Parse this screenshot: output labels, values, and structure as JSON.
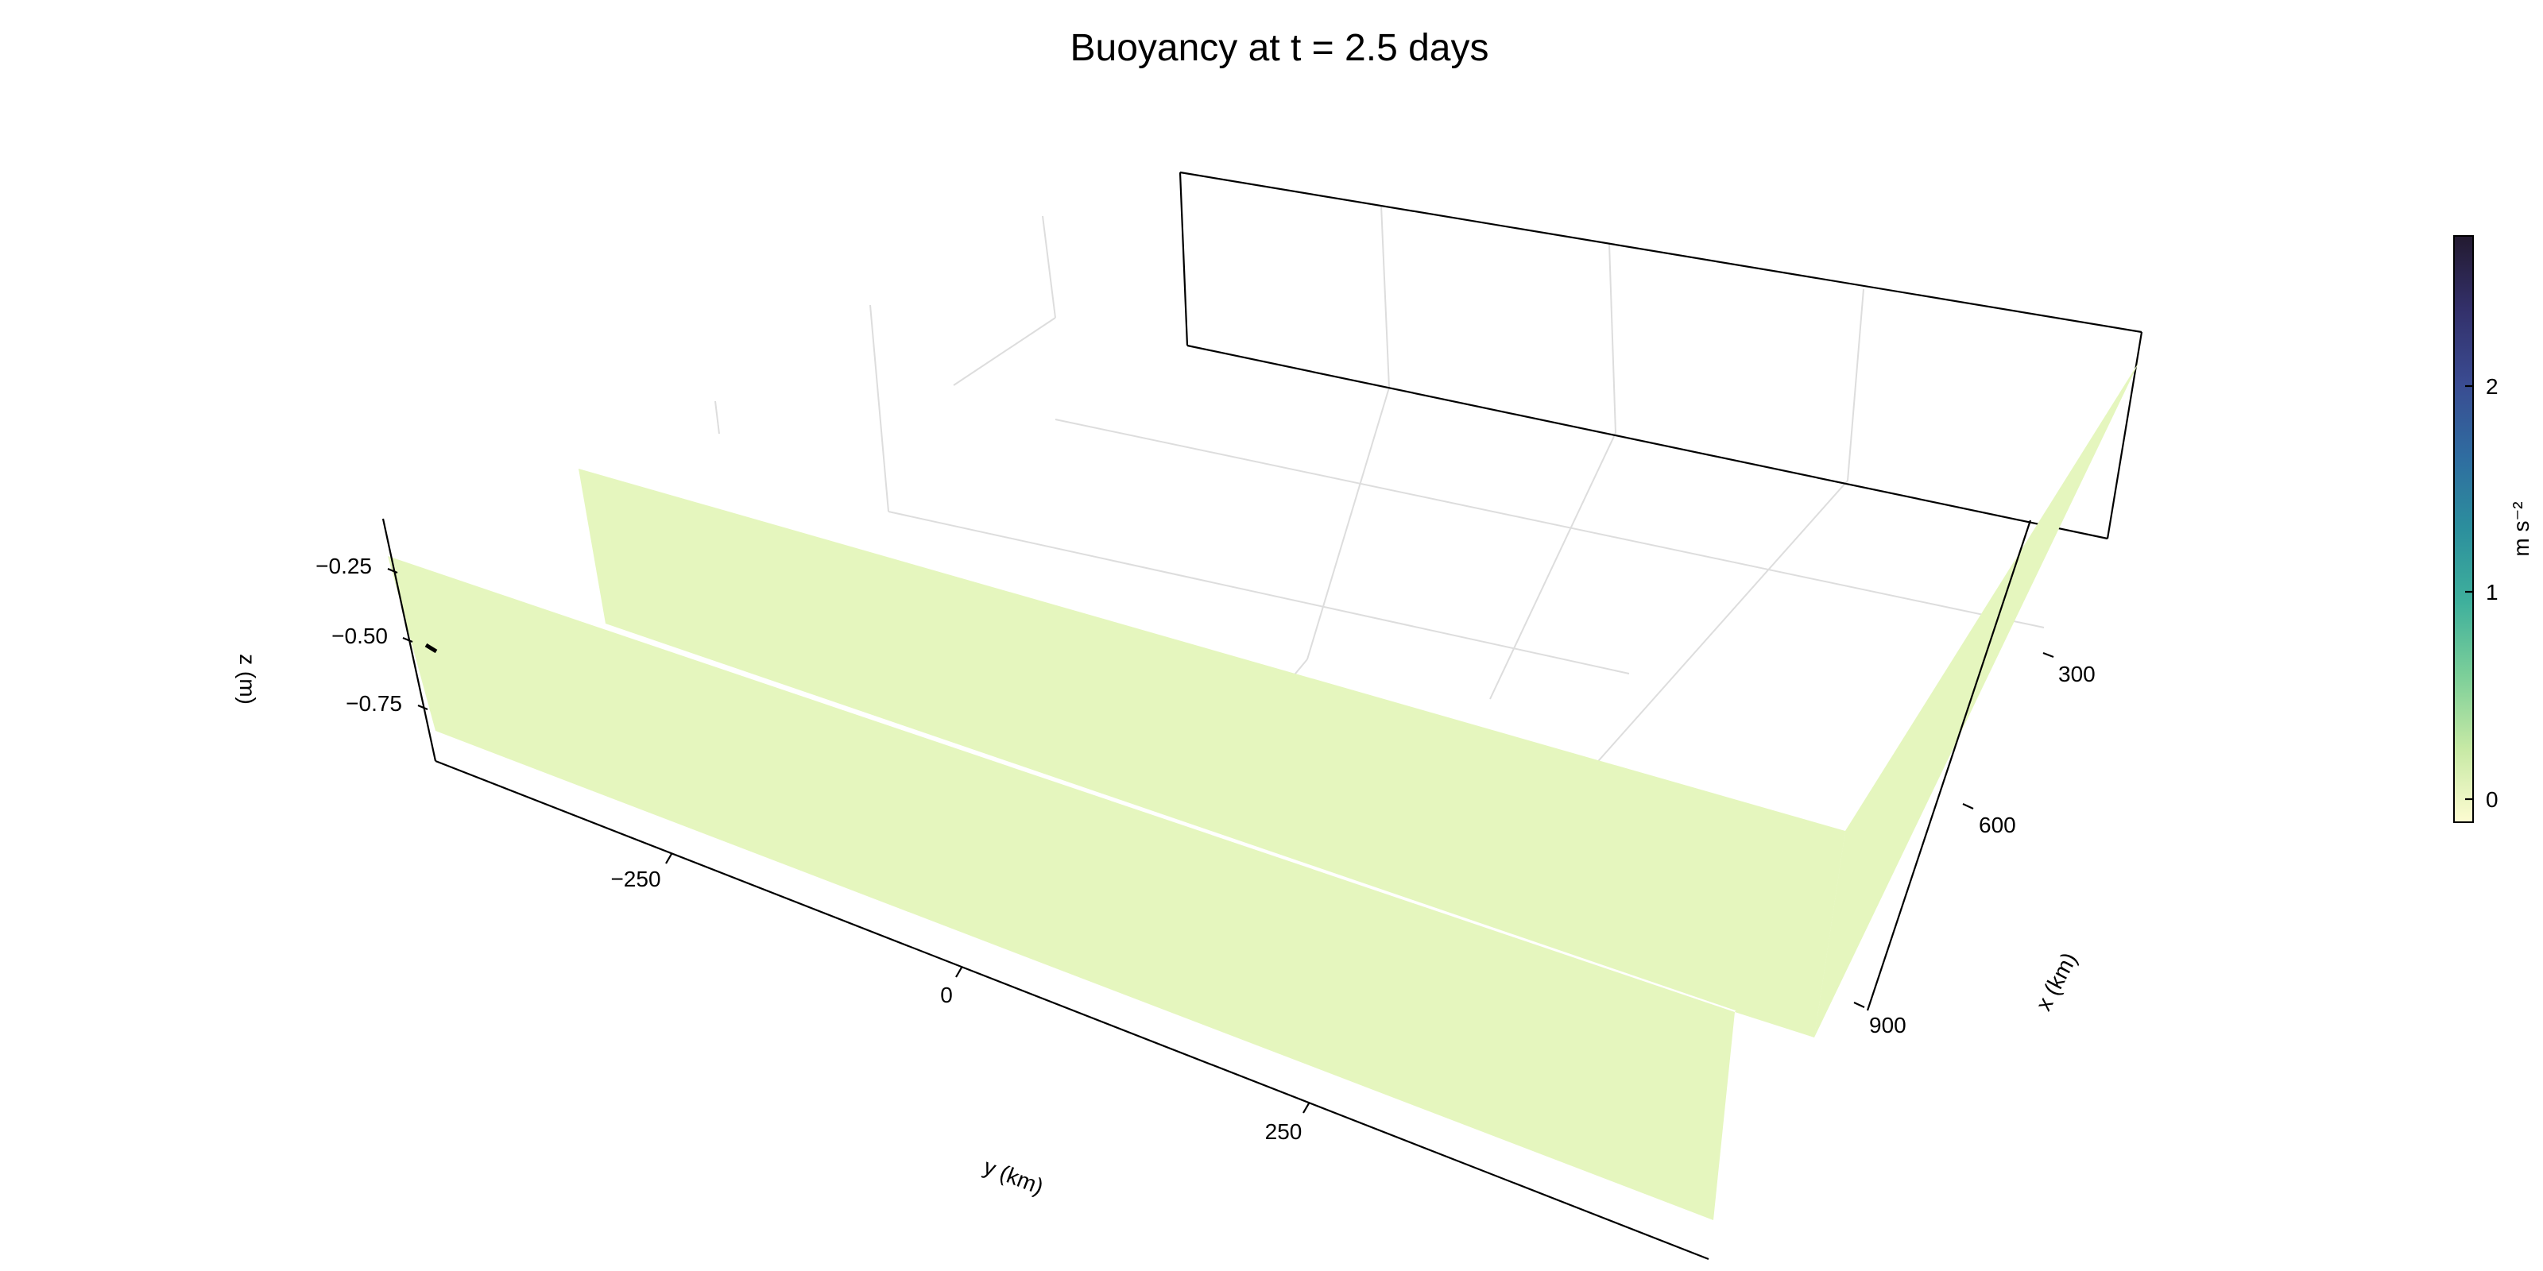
{
  "chart_data": {
    "type": "heatmap",
    "title": "Buoyancy at t = 2.5 days",
    "xlabel": "x (km)",
    "ylabel": "y (km)",
    "zlabel": "z (m)",
    "x_ticks": [
      "300",
      "600",
      "900"
    ],
    "y_ticks": [
      "−250",
      "0",
      "250"
    ],
    "z_ticks": [
      "−0.25",
      "−0.50",
      "−0.75"
    ],
    "colorbar": {
      "label": "m s⁻²",
      "ticks": [
        "0",
        "1",
        "2"
      ],
      "range": [
        -0.1,
        2.75
      ],
      "colors": [
        "#fdfcd1",
        "#c7e9a5",
        "#7ccf99",
        "#3fb09c",
        "#2c8f9d",
        "#2f6ca0",
        "#3a4b91",
        "#33306a",
        "#231a30"
      ]
    },
    "slice_value": 0,
    "slice_color": "#e5f6be",
    "grid": true
  }
}
